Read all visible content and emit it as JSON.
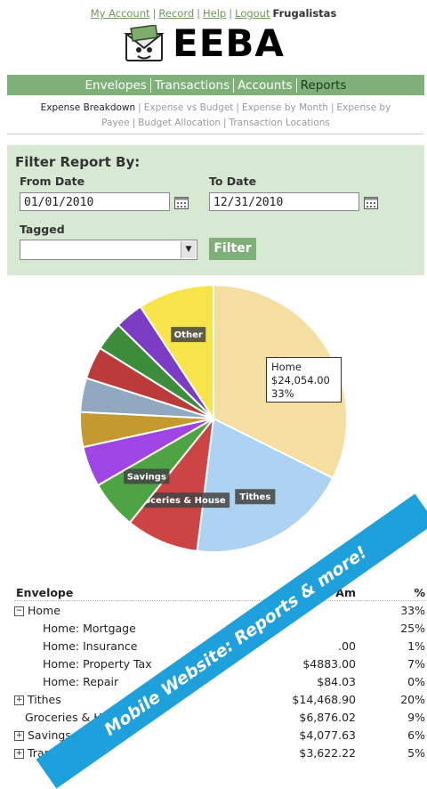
{
  "header": {
    "links": [
      "My Account",
      "Record",
      "Help",
      "Logout"
    ],
    "brand": "Frugalistas",
    "logo_text": "EEBA"
  },
  "mainnav": [
    {
      "label": "Envelopes",
      "active": false
    },
    {
      "label": "Transactions",
      "active": false
    },
    {
      "label": "Accounts",
      "active": false
    },
    {
      "label": "Reports",
      "active": true
    }
  ],
  "subnav": [
    {
      "label": "Expense Breakdown",
      "active": true
    },
    {
      "label": "Expense vs Budget",
      "active": false
    },
    {
      "label": "Expense by Month",
      "active": false
    },
    {
      "label": "Expense by Payee",
      "active": false
    },
    {
      "label": "Budget Allocation",
      "active": false
    },
    {
      "label": "Transaction Locations",
      "active": false
    }
  ],
  "filter": {
    "title": "Filter Report By:",
    "from_label": "From Date",
    "from_value": "01/01/2010",
    "to_label": "To Date",
    "to_value": "12/31/2010",
    "tagged_label": "Tagged",
    "tagged_value": "",
    "button": "Filter"
  },
  "chart_data": {
    "type": "pie",
    "slices": [
      {
        "label": "Home",
        "value": 33,
        "color": "#f4dea0",
        "show_label": false
      },
      {
        "label": "Tithes",
        "value": 20,
        "color": "#aed2f2",
        "show_label": true
      },
      {
        "label": "Groceries & House",
        "value": 9,
        "color": "#cc4444",
        "show_label": true
      },
      {
        "label": "Savings",
        "value": 6,
        "color": "#4ea444",
        "show_label": true
      },
      {
        "label": "",
        "value": 5,
        "color": "#9f45e6",
        "show_label": false
      },
      {
        "label": "",
        "value": 4.3,
        "color": "#c49a30",
        "show_label": false
      },
      {
        "label": "",
        "value": 4.2,
        "color": "#90a8c0",
        "show_label": false
      },
      {
        "label": "",
        "value": 4,
        "color": "#bb3a3a",
        "show_label": false
      },
      {
        "label": "",
        "value": 3.6,
        "color": "#3c8c3c",
        "show_label": false
      },
      {
        "label": "",
        "value": 3.5,
        "color": "#7c3cc4",
        "show_label": false
      },
      {
        "label": "Other",
        "value": 9.4,
        "color": "#f7e34a",
        "show_label": true
      }
    ],
    "tooltip": {
      "label": "Home",
      "amount": "$24,054.00",
      "percent": "33%"
    }
  },
  "table": {
    "headers": [
      "Envelope",
      "Am",
      "%"
    ],
    "rows": [
      {
        "name": "Home",
        "toggle": "minus",
        "indent": 0,
        "amount": "",
        "pct": "33%"
      },
      {
        "name": "Home: Mortgage",
        "toggle": "",
        "indent": 2,
        "amount": "",
        "pct": "25%"
      },
      {
        "name": "Home: Insurance",
        "toggle": "",
        "indent": 2,
        "amount": ".00",
        "pct": "1%"
      },
      {
        "name": "Home: Property Tax",
        "toggle": "",
        "indent": 2,
        "amount": "$4883.00",
        "pct": "7%"
      },
      {
        "name": "Home: Repair",
        "toggle": "",
        "indent": 2,
        "amount": "$84.03",
        "pct": "0%"
      },
      {
        "name": "Tithes",
        "toggle": "plus",
        "indent": 0,
        "amount": "$14,468.90",
        "pct": "20%"
      },
      {
        "name": "Groceries & Ho",
        "toggle": "",
        "indent": 1,
        "amount": "$6,876.02",
        "pct": "9%"
      },
      {
        "name": "Savings",
        "toggle": "plus",
        "indent": 0,
        "amount": "$4,077.63",
        "pct": "6%"
      },
      {
        "name": "Tran",
        "toggle": "plus",
        "indent": 0,
        "amount": "$3,622.22",
        "pct": "5%"
      }
    ]
  },
  "banner": {
    "text": "Mobile Website: Reports & more!",
    "color": "#1ea0dc"
  }
}
